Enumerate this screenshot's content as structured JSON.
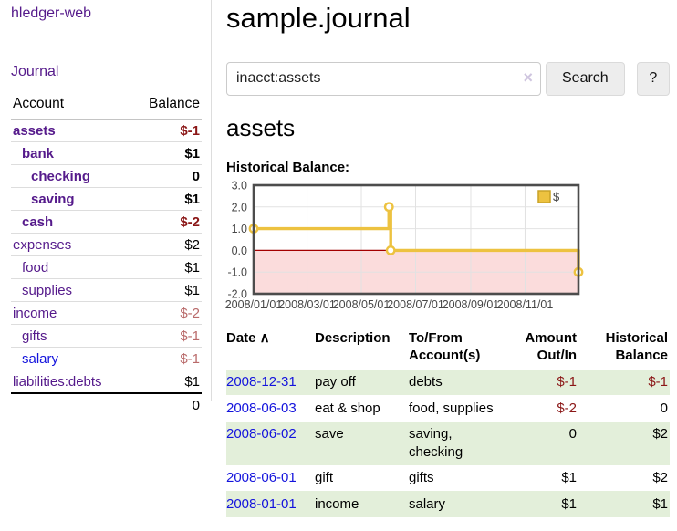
{
  "sidebar": {
    "brand": "hledger-web",
    "journal_label": "Journal",
    "accounts_table": {
      "headers": [
        "Account",
        "Balance"
      ],
      "rows": [
        {
          "name": "assets",
          "depth": 0,
          "bold": true,
          "balance": "$-1",
          "balance_style": "negative-strong",
          "link_style": "purple"
        },
        {
          "name": "bank",
          "depth": 1,
          "bold": true,
          "balance": "$1",
          "balance_style": "normal",
          "link_style": "purple"
        },
        {
          "name": "checking",
          "depth": 2,
          "bold": true,
          "balance": "0",
          "balance_style": "normal",
          "link_style": "purple"
        },
        {
          "name": "saving",
          "depth": 2,
          "bold": true,
          "balance": "$1",
          "balance_style": "normal",
          "link_style": "purple"
        },
        {
          "name": "cash",
          "depth": 1,
          "bold": true,
          "balance": "$-2",
          "balance_style": "negative-strong",
          "link_style": "purple"
        },
        {
          "name": "expenses",
          "depth": 0,
          "bold": false,
          "balance": "$2",
          "balance_style": "normal",
          "link_style": "purple"
        },
        {
          "name": "food",
          "depth": 1,
          "bold": false,
          "balance": "$1",
          "balance_style": "normal",
          "link_style": "purple"
        },
        {
          "name": "supplies",
          "depth": 1,
          "bold": false,
          "balance": "$1",
          "balance_style": "normal",
          "link_style": "purple"
        },
        {
          "name": "income",
          "depth": 0,
          "bold": false,
          "balance": "$-2",
          "balance_style": "negative-soft",
          "link_style": "purple"
        },
        {
          "name": "gifts",
          "depth": 1,
          "bold": false,
          "balance": "$-1",
          "balance_style": "negative-soft",
          "link_style": "purple"
        },
        {
          "name": "salary",
          "depth": 1,
          "bold": false,
          "balance": "$-1",
          "balance_style": "negative-soft",
          "link_style": "blue"
        },
        {
          "name": "liabilities:debts",
          "depth": 0,
          "bold": false,
          "balance": "$1",
          "balance_style": "normal",
          "link_style": "purple"
        }
      ],
      "total": "0"
    }
  },
  "main": {
    "title": "sample.journal",
    "search": {
      "value": "inacct:assets",
      "clear_icon": "×",
      "button_label": "Search",
      "help_label": "?"
    },
    "account_heading": "assets",
    "chart_label": "Historical Balance:",
    "register": {
      "headers": [
        {
          "lines": [
            "Date"
          ],
          "sort": "∧",
          "sortable": true
        },
        {
          "lines": [
            "Description"
          ]
        },
        {
          "lines": [
            "To/From",
            "Account(s)"
          ]
        },
        {
          "lines": [
            "Amount",
            "Out/In"
          ],
          "align": "right"
        },
        {
          "lines": [
            "Historical",
            "Balance"
          ],
          "align": "right"
        }
      ],
      "rows": [
        {
          "date": "2008-12-31",
          "description": "pay off",
          "accounts": [
            "debts"
          ],
          "amount": "$-1",
          "amount_negative": true,
          "balance": "$-1",
          "balance_negative": true
        },
        {
          "date": "2008-06-03",
          "description": "eat & shop",
          "accounts": [
            "food, supplies"
          ],
          "amount": "$-2",
          "amount_negative": true,
          "balance": "0",
          "balance_negative": false
        },
        {
          "date": "2008-06-02",
          "description": "save",
          "accounts": [
            "saving,",
            "checking"
          ],
          "amount": "0",
          "amount_negative": false,
          "balance": "$2",
          "balance_negative": false
        },
        {
          "date": "2008-06-01",
          "description": "gift",
          "accounts": [
            "gifts"
          ],
          "amount": "$1",
          "amount_negative": false,
          "balance": "$2",
          "balance_negative": false
        },
        {
          "date": "2008-01-01",
          "description": "income",
          "accounts": [
            "salary"
          ],
          "amount": "$1",
          "amount_negative": false,
          "balance": "$1",
          "balance_negative": false
        }
      ]
    }
  },
  "chart_data": {
    "type": "line",
    "title": "Historical Balance",
    "step": true,
    "series": [
      {
        "name": "$",
        "color": "#edc240",
        "points": [
          {
            "date": "2008-01-01",
            "value": 1
          },
          {
            "date": "2008-06-01",
            "value": 2
          },
          {
            "date": "2008-06-03",
            "value": 0
          },
          {
            "date": "2008-12-31",
            "value": -1
          }
        ]
      }
    ],
    "x_ticks": [
      {
        "date": "2008-01-01",
        "label": "2008/01/01"
      },
      {
        "date": "2008-03-01",
        "label": "2008/03/01"
      },
      {
        "date": "2008-05-01",
        "label": "2008/05/01"
      },
      {
        "date": "2008-07-01",
        "label": "2008/07/01"
      },
      {
        "date": "2008-09-01",
        "label": "2008/09/01"
      },
      {
        "date": "2008-11-01",
        "label": "2008/11/01"
      }
    ],
    "y_ticks": [
      3.0,
      2.0,
      1.0,
      0.0,
      -1.0,
      -2.0
    ],
    "ylim": [
      -2,
      3
    ],
    "xlim": [
      "2008-01-01",
      "2008-12-31"
    ],
    "grid": true,
    "legend_position": "top-right",
    "negative_region_fill": "#fbdcdc",
    "zero_line_color": "#a40000",
    "grid_color": "#e2e2e2",
    "border_color": "#4c4c4c",
    "axis_text_color": "#474747"
  }
}
